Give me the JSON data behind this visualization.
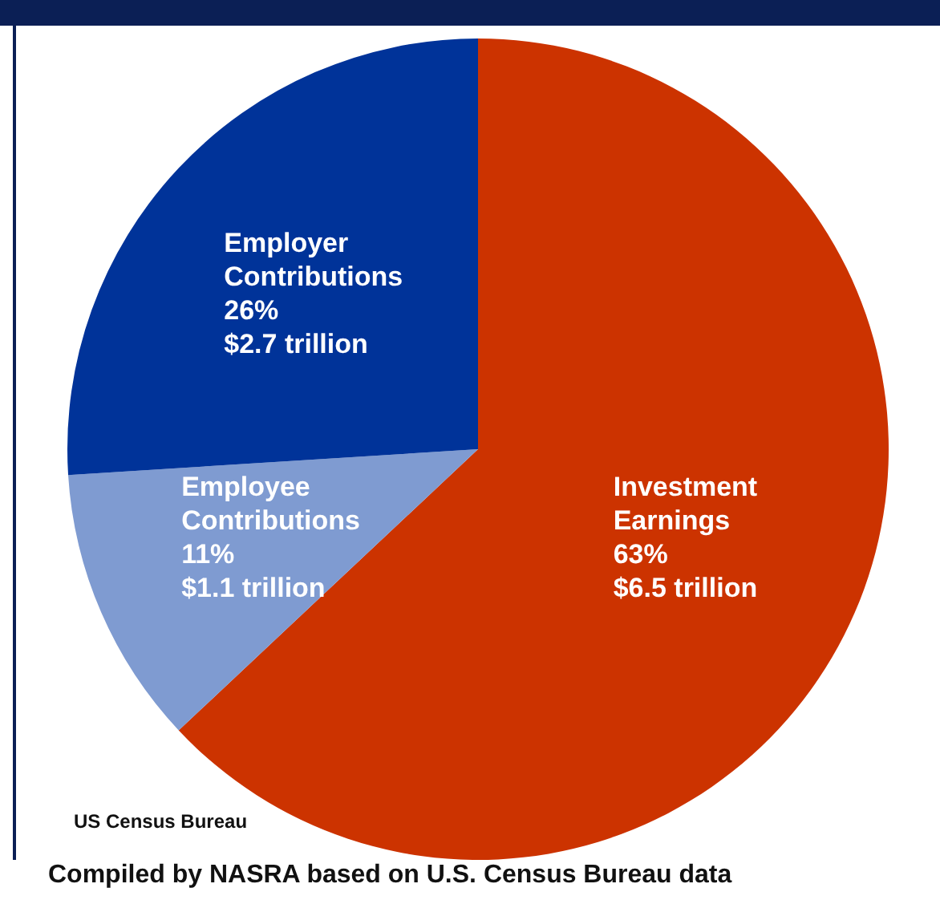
{
  "chart_data": {
    "type": "pie",
    "categories": [
      "Investment Earnings",
      "Employee Contributions",
      "Employer Contributions"
    ],
    "values": [
      63,
      11,
      26
    ],
    "colors": [
      "#cc3300",
      "#7f9bd1",
      "#003399"
    ],
    "value_labels": [
      "63%\n$6.5 trillion",
      "11%\n$1.1 trillion",
      "26%\n$2.7 trillion"
    ],
    "annotations": [
      "US Census Bureau",
      "Compiled by NASRA based on U.S. Census Bureau data"
    ],
    "legend": false
  }
}
